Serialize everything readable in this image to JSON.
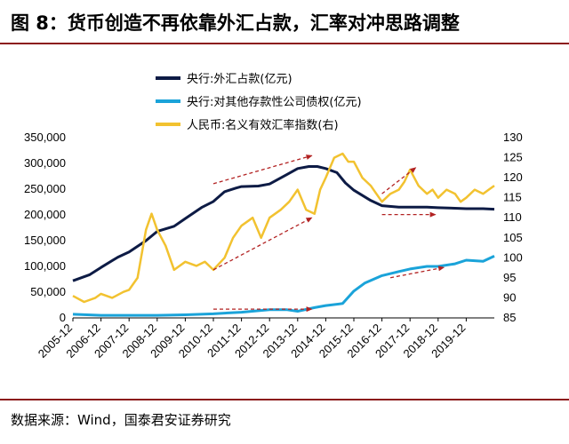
{
  "figure": {
    "title": "图 8：货币创造不再依靠外汇占款，汇率对冲思路调整",
    "source": "数据来源：Wind，国泰君安证券研究"
  },
  "colors": {
    "rule": "#8b1a1a",
    "fx_reserves": "#0d1b45",
    "other_claims": "#1aa3d9",
    "rmb_index": "#f2c230",
    "arrow": "#b22222"
  },
  "chart_data": {
    "type": "line",
    "title": "",
    "xlabel": "",
    "ylabel": "",
    "x_ticks": [
      "2005-12",
      "2006-12",
      "2007-12",
      "2008-12",
      "2009-12",
      "2010-12",
      "2011-12",
      "2012-12",
      "2013-12",
      "2014-12",
      "2015-12",
      "2016-12",
      "2017-12",
      "2018-12",
      "2019-12"
    ],
    "x_range": [
      2005.9,
      2020.9
    ],
    "y_left": {
      "ticks": [
        "0",
        "50,000",
        "100,000",
        "150,000",
        "200,000",
        "250,000",
        "300,000",
        "350,000"
      ],
      "range": [
        0,
        350000
      ]
    },
    "y_right": {
      "ticks": [
        "85",
        "90",
        "95",
        "100",
        "105",
        "110",
        "115",
        "120",
        "125",
        "130"
      ],
      "range": [
        85,
        130
      ]
    },
    "legend_position": "top",
    "series": [
      {
        "name": "央行:外汇占款(亿元)",
        "axis": "left",
        "x": [
          2005.9,
          2006.5,
          2006.9,
          2007.5,
          2007.9,
          2008.5,
          2008.9,
          2009.5,
          2009.9,
          2010.5,
          2010.9,
          2011.3,
          2011.7,
          2011.9,
          2012.5,
          2012.9,
          2013.5,
          2013.9,
          2014.3,
          2014.6,
          2014.9,
          2015.3,
          2015.6,
          2015.9,
          2016.5,
          2016.9,
          2017.5,
          2017.9,
          2018.5,
          2018.9,
          2019.5,
          2019.9,
          2020.5,
          2020.9
        ],
        "values": [
          72000,
          84000,
          98000,
          118000,
          128000,
          150000,
          168000,
          178000,
          193000,
          215000,
          226000,
          245000,
          252000,
          255000,
          256000,
          260000,
          278000,
          290000,
          294000,
          294000,
          290000,
          282000,
          262000,
          248000,
          228000,
          218000,
          215000,
          215000,
          215000,
          214000,
          213000,
          212000,
          212000,
          211000
        ]
      },
      {
        "name": "央行:对其他存款性公司债权(亿元)",
        "axis": "left",
        "x": [
          2005.9,
          2006.9,
          2007.9,
          2008.9,
          2009.9,
          2010.9,
          2011.5,
          2011.9,
          2012.5,
          2012.9,
          2013.5,
          2013.9,
          2014.5,
          2014.9,
          2015.5,
          2015.9,
          2016.3,
          2016.9,
          2017.5,
          2017.9,
          2018.5,
          2018.9,
          2019.5,
          2019.9,
          2020.5,
          2020.9
        ],
        "values": [
          7000,
          5000,
          5000,
          5000,
          6000,
          8000,
          10000,
          11000,
          14000,
          16000,
          16000,
          13000,
          20000,
          24000,
          28000,
          52000,
          68000,
          82000,
          90000,
          95000,
          100000,
          100000,
          105000,
          112000,
          110000,
          120000
        ]
      },
      {
        "name": "人民币:名义有效汇率指数(右)",
        "axis": "right",
        "x": [
          2005.9,
          2006.3,
          2006.7,
          2006.9,
          2007.3,
          2007.7,
          2007.9,
          2008.2,
          2008.5,
          2008.7,
          2008.9,
          2009.2,
          2009.5,
          2009.9,
          2010.3,
          2010.6,
          2010.9,
          2011.3,
          2011.6,
          2011.9,
          2012.3,
          2012.6,
          2012.9,
          2013.3,
          2013.6,
          2013.9,
          2014.2,
          2014.5,
          2014.7,
          2014.9,
          2015.2,
          2015.5,
          2015.7,
          2015.9,
          2016.2,
          2016.5,
          2016.7,
          2016.9,
          2017.2,
          2017.5,
          2017.7,
          2017.9,
          2018.2,
          2018.5,
          2018.7,
          2018.9,
          2019.2,
          2019.5,
          2019.7,
          2019.9,
          2020.2,
          2020.5,
          2020.7,
          2020.9
        ],
        "values": [
          90.5,
          89,
          90,
          91,
          90,
          91.5,
          92,
          95,
          107,
          111,
          107,
          103,
          97,
          99,
          98,
          99,
          97,
          100,
          105,
          108,
          110,
          105,
          110,
          112,
          114,
          117,
          112,
          111,
          117,
          120,
          125,
          126,
          124,
          124,
          120,
          118,
          116,
          114,
          116,
          117,
          119,
          122,
          118,
          116,
          117,
          115,
          117,
          116,
          114,
          115,
          117,
          116,
          117,
          118
        ]
      }
    ],
    "annotations": [
      {
        "type": "arrow",
        "from": [
          2010.9,
          118.5
        ],
        "to": [
          2014.4,
          125.5
        ]
      },
      {
        "type": "arrow",
        "from": [
          2010.9,
          97
        ],
        "to": [
          2014.4,
          110
        ]
      },
      {
        "type": "arrow",
        "from": [
          2016.9,
          116
        ],
        "to": [
          2018.1,
          122.5
        ]
      },
      {
        "type": "arrow",
        "from": [
          2016.9,
          110.8
        ],
        "to": [
          2018.8,
          110.8
        ]
      },
      {
        "type": "arrow",
        "from": [
          2010.9,
          17000
        ],
        "to": [
          2014.4,
          17000
        ]
      },
      {
        "type": "arrow",
        "from": [
          2017.2,
          78000
        ],
        "to": [
          2019.1,
          98000
        ]
      }
    ]
  }
}
